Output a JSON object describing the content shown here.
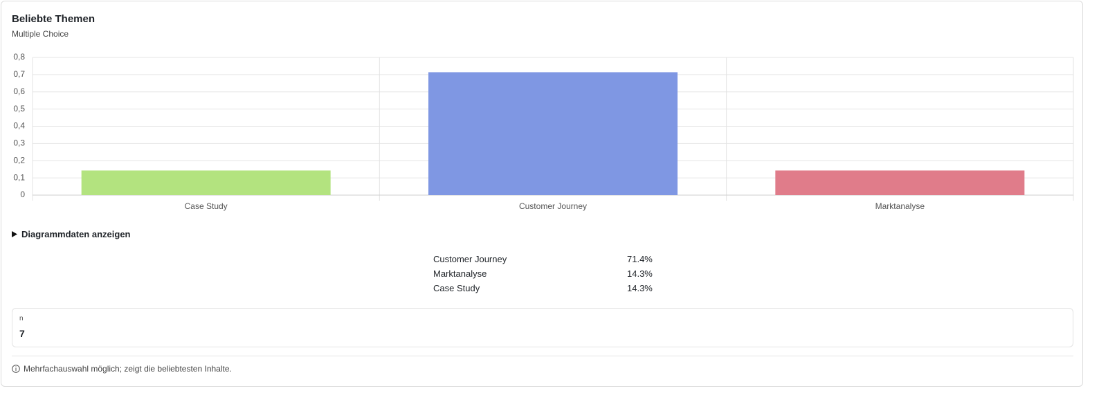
{
  "header": {
    "title": "Beliebte Themen",
    "subtitle": "Multiple Choice"
  },
  "chart_data": {
    "type": "bar",
    "categories": [
      "Case Study",
      "Customer Journey",
      "Marktanalyse"
    ],
    "values": [
      0.143,
      0.714,
      0.143
    ],
    "colors": [
      "#b3e37f",
      "#7f97e3",
      "#e07c8a"
    ],
    "ylim": [
      0,
      0.8
    ],
    "yticks": [
      0,
      {
        "value": 0.1,
        "label": "0,1"
      },
      {
        "value": 0.2,
        "label": "0,2"
      },
      {
        "value": 0.3,
        "label": "0,3"
      },
      {
        "value": 0.4,
        "label": "0,4"
      },
      {
        "value": 0.5,
        "label": "0,5"
      },
      {
        "value": 0.6,
        "label": "0,6"
      },
      {
        "value": 0.7,
        "label": "0,7"
      },
      {
        "value": 0.8,
        "label": "0,8"
      }
    ],
    "grid": true
  },
  "details": {
    "summary": "Diagrammdaten anzeigen",
    "rows": [
      [
        "Customer Journey",
        "71.4%"
      ],
      [
        "Marktanalyse",
        "14.3%"
      ],
      [
        "Case Study",
        "14.3%"
      ]
    ]
  },
  "stat": {
    "label": "n",
    "value": 7
  },
  "footnote": "Mehrfachauswahl möglich; zeigt die beliebtesten Inhalte."
}
